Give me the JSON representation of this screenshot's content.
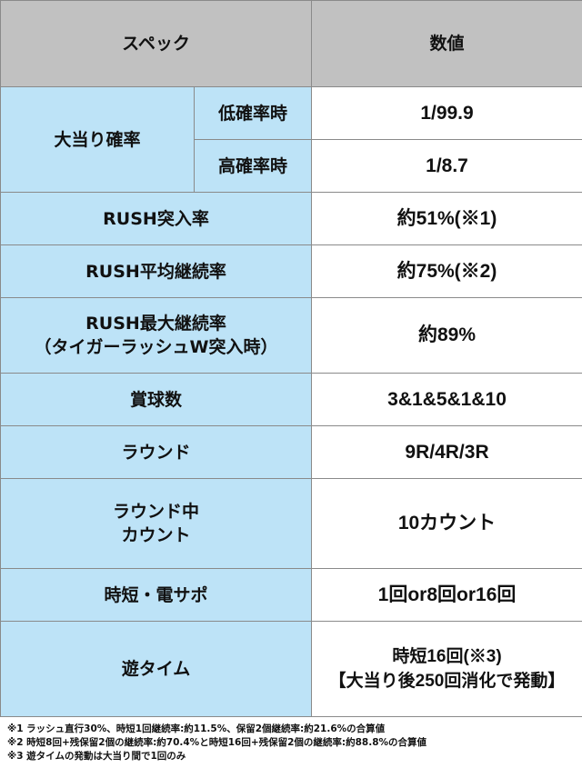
{
  "header": {
    "spec": "スペック",
    "value": "数値"
  },
  "rows": [
    {
      "label": "大当り確率",
      "sub": [
        {
          "label": "低確率時",
          "value": "1/99.9"
        },
        {
          "label": "高確率時",
          "value": "1/8.7"
        }
      ]
    },
    {
      "label": "RUSH突入率",
      "value": "約51%(※1)"
    },
    {
      "label": "RUSH平均継続率",
      "value": "約75%(※2)"
    },
    {
      "label": "RUSH最大継続率",
      "label2": "（タイガーラッシュW突入時）",
      "value": "約89%"
    },
    {
      "label": "賞球数",
      "value": "3&1&5&1&10"
    },
    {
      "label": "ラウンド",
      "value": "9R/4R/3R"
    },
    {
      "label": "ラウンド中",
      "label2": "カウント",
      "value": "10カウント"
    },
    {
      "label": "時短・電サポ",
      "value": "1回or8回or16回"
    },
    {
      "label": "遊タイム",
      "value": "時短16回(※3)",
      "value2": "【大当り後250回消化で発動】"
    }
  ],
  "notes": [
    "※1 ラッシュ直行30%、時短1回継続率:約11.5%、保留2個継続率:約21.6%の合算値",
    "※2 時短8回+残保留2個の継続率:約70.4%と時短16回+残保留2個の継続率:約88.8%の合算値",
    "※3 遊タイムの発動は大当り間で1回のみ"
  ],
  "colors": {
    "header": "#c1c1c1",
    "label": "#bde3f7",
    "border": "#8a8a8a"
  }
}
